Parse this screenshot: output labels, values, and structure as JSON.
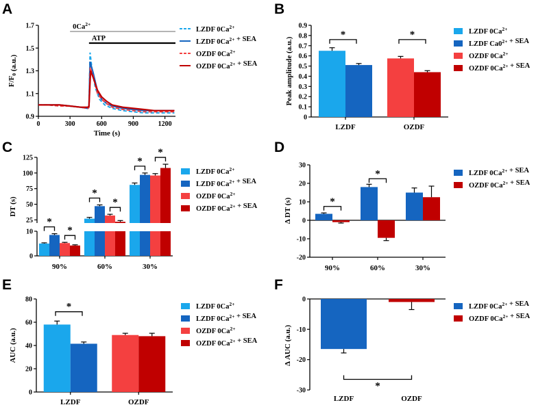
{
  "figure": {
    "panels": [
      "A",
      "B",
      "C",
      "D",
      "E",
      "F"
    ]
  },
  "colors": {
    "lzdf": "#1aa7ec",
    "lzdf_sea": "#1565c0",
    "ozdf": "#f44040",
    "ozdf_sea": "#c00000",
    "axis": "#000000"
  },
  "chart_data": [
    {
      "id": "A",
      "type": "line",
      "xlabel": "Time (s)",
      "ylabel": "F/F0 (a.u.)",
      "xlim": [
        0,
        1300
      ],
      "ylim": [
        0.9,
        1.7
      ],
      "xticks": [
        0,
        300,
        600,
        900,
        1200
      ],
      "yticks": [
        0.9,
        1.1,
        1.3,
        1.5,
        1.7
      ],
      "annotations": [
        {
          "label": "0Ca2+",
          "x_start": 300,
          "x_end": 1300
        },
        {
          "label": "ATP",
          "x_start": 480,
          "x_end": 1300
        }
      ],
      "series": [
        {
          "name": "LZDF 0Ca2+",
          "style": "dashed",
          "color": "#1aa7ec",
          "points": [
            [
              0,
              1.0
            ],
            [
              100,
              1.0
            ],
            [
              200,
              0.99
            ],
            [
              300,
              0.99
            ],
            [
              400,
              0.98
            ],
            [
              460,
              0.97
            ],
            [
              480,
              0.98
            ],
            [
              490,
              1.46
            ],
            [
              510,
              1.3
            ],
            [
              540,
              1.15
            ],
            [
              580,
              1.05
            ],
            [
              630,
              1.0
            ],
            [
              700,
              0.97
            ],
            [
              800,
              0.95
            ],
            [
              900,
              0.94
            ],
            [
              1000,
              0.93
            ],
            [
              1100,
              0.93
            ],
            [
              1200,
              0.93
            ],
            [
              1290,
              0.93
            ]
          ]
        },
        {
          "name": "LZDF 0Ca2+ + SEA",
          "style": "solid",
          "color": "#1565c0",
          "points": [
            [
              0,
              1.0
            ],
            [
              100,
              1.0
            ],
            [
              200,
              1.0
            ],
            [
              300,
              0.99
            ],
            [
              400,
              0.98
            ],
            [
              470,
              0.97
            ],
            [
              480,
              0.98
            ],
            [
              490,
              1.38
            ],
            [
              520,
              1.28
            ],
            [
              560,
              1.12
            ],
            [
              600,
              1.05
            ],
            [
              650,
              1.01
            ],
            [
              700,
              0.99
            ],
            [
              800,
              0.97
            ],
            [
              900,
              0.96
            ],
            [
              1000,
              0.95
            ],
            [
              1100,
              0.95
            ],
            [
              1200,
              0.95
            ],
            [
              1290,
              0.95
            ]
          ]
        },
        {
          "name": "OZDF 0Ca2+",
          "style": "dashed",
          "color": "#f44040",
          "points": [
            [
              0,
              1.0
            ],
            [
              100,
              1.0
            ],
            [
              200,
              0.99
            ],
            [
              300,
              0.99
            ],
            [
              400,
              0.98
            ],
            [
              470,
              0.97
            ],
            [
              480,
              0.98
            ],
            [
              492,
              1.33
            ],
            [
              520,
              1.25
            ],
            [
              560,
              1.1
            ],
            [
              600,
              1.05
            ],
            [
              650,
              1.01
            ],
            [
              700,
              0.98
            ],
            [
              800,
              0.96
            ],
            [
              900,
              0.95
            ],
            [
              1000,
              0.94
            ],
            [
              1100,
              0.94
            ],
            [
              1200,
              0.94
            ],
            [
              1290,
              0.94
            ]
          ]
        },
        {
          "name": "OZDF 0Ca2+ + SEA",
          "style": "solid",
          "color": "#c00000",
          "points": [
            [
              0,
              1.0
            ],
            [
              100,
              1.0
            ],
            [
              200,
              1.0
            ],
            [
              300,
              0.99
            ],
            [
              400,
              0.98
            ],
            [
              470,
              0.98
            ],
            [
              480,
              0.99
            ],
            [
              495,
              1.3
            ],
            [
              520,
              1.24
            ],
            [
              560,
              1.13
            ],
            [
              600,
              1.07
            ],
            [
              650,
              1.03
            ],
            [
              700,
              1.0
            ],
            [
              800,
              0.98
            ],
            [
              900,
              0.97
            ],
            [
              1000,
              0.96
            ],
            [
              1100,
              0.95
            ],
            [
              1200,
              0.95
            ],
            [
              1290,
              0.95
            ]
          ]
        }
      ]
    },
    {
      "id": "B",
      "type": "bar",
      "ylabel": "Peak amplitude (a.u.)",
      "ylim": [
        0,
        0.9
      ],
      "yticks": [
        0,
        0.1,
        0.2,
        0.3,
        0.4,
        0.5,
        0.6,
        0.7,
        0.8,
        0.9
      ],
      "categories": [
        "LZDF",
        "OZDF"
      ],
      "series": [
        {
          "name": "LZDF 0Ca2+",
          "values": [
            0.65,
            null
          ],
          "errors": [
            0.03,
            null
          ]
        },
        {
          "name": "LZDF Ca02+ + SEA",
          "values": [
            0.51,
            null
          ],
          "errors": [
            0.015,
            null
          ]
        },
        {
          "name": "OZDF 0Ca2+",
          "values": [
            null,
            0.575
          ],
          "errors": [
            null,
            0.02
          ]
        },
        {
          "name": "OZDF 0Ca2+ + SEA",
          "values": [
            null,
            0.44
          ],
          "errors": [
            null,
            0.015
          ]
        }
      ],
      "significance": [
        "*",
        "*"
      ]
    },
    {
      "id": "C",
      "type": "bar",
      "ylabel": "DT (s)",
      "yticks_upper": [
        25,
        50,
        75,
        100,
        125
      ],
      "yticks_lower": [
        0,
        10
      ],
      "axis_break": [
        10,
        20
      ],
      "categories": [
        "90%",
        "60%",
        "30%"
      ],
      "series": [
        {
          "name": "LZDF 0Ca2+",
          "values": [
            5.0,
            27,
            81
          ],
          "errors": [
            0.3,
            2,
            3
          ]
        },
        {
          "name": "LZDF 0Ca2+ + SEA",
          "values": [
            8.5,
            47,
            97
          ],
          "errors": [
            0.5,
            2,
            3
          ]
        },
        {
          "name": "OZDF 0Ca2+",
          "values": [
            5.2,
            32,
            96
          ],
          "errors": [
            0.3,
            2,
            3
          ]
        },
        {
          "name": "OZDF 0Ca2+ + SEA",
          "values": [
            4.2,
            22,
            108
          ],
          "errors": [
            0.3,
            2,
            6
          ]
        }
      ],
      "significance": [
        "*",
        "*",
        "*",
        "*",
        "*",
        "*"
      ]
    },
    {
      "id": "D",
      "type": "bar",
      "ylabel": "Δ DT (s)",
      "ylim": [
        -20,
        30
      ],
      "yticks": [
        -20,
        -10,
        0,
        10,
        20,
        30
      ],
      "categories": [
        "90%",
        "60%",
        "30%"
      ],
      "series": [
        {
          "name": "LZDF 0Ca2+ + SEA",
          "values": [
            3.5,
            18,
            15
          ],
          "errors": [
            0.5,
            1.5,
            2.5
          ]
        },
        {
          "name": "OZDF 0Ca2+ + SEA",
          "values": [
            -1,
            -9.5,
            12.5
          ],
          "errors": [
            0.5,
            1.5,
            6
          ]
        }
      ],
      "significance": [
        "*",
        "*"
      ]
    },
    {
      "id": "E",
      "type": "bar",
      "ylabel": "AUC (a.u.)",
      "ylim": [
        0,
        80
      ],
      "yticks": [
        0,
        20,
        40,
        60,
        80
      ],
      "categories": [
        "LZDF",
        "OZDF"
      ],
      "series": [
        {
          "name": "LZDF 0Ca2+",
          "values": [
            58,
            null
          ],
          "errors": [
            3,
            null
          ]
        },
        {
          "name": "LZDF 0Ca2+ + SEA",
          "values": [
            41.5,
            null
          ],
          "errors": [
            1.5,
            null
          ]
        },
        {
          "name": "OZDF 0Ca2+",
          "values": [
            null,
            49
          ],
          "errors": [
            null,
            1.5
          ]
        },
        {
          "name": "OZDF 0Ca2+ + SEA",
          "values": [
            null,
            48
          ],
          "errors": [
            null,
            2.5
          ]
        }
      ],
      "significance": [
        "*"
      ]
    },
    {
      "id": "F",
      "type": "bar",
      "ylabel": "Δ AUC (a.u.)",
      "ylim": [
        -30,
        0
      ],
      "yticks": [
        0,
        -10,
        -20,
        -30
      ],
      "categories": [
        "LZDF",
        "OZDF"
      ],
      "series": [
        {
          "name": "LZDF 0Ca2+ + SEA",
          "values": [
            -16.5,
            null
          ],
          "errors": [
            1.3,
            null
          ]
        },
        {
          "name": "OZDF 0Ca2+ + SEA",
          "values": [
            null,
            -1
          ],
          "errors": [
            null,
            2.5
          ]
        }
      ],
      "significance": [
        "*"
      ]
    }
  ]
}
